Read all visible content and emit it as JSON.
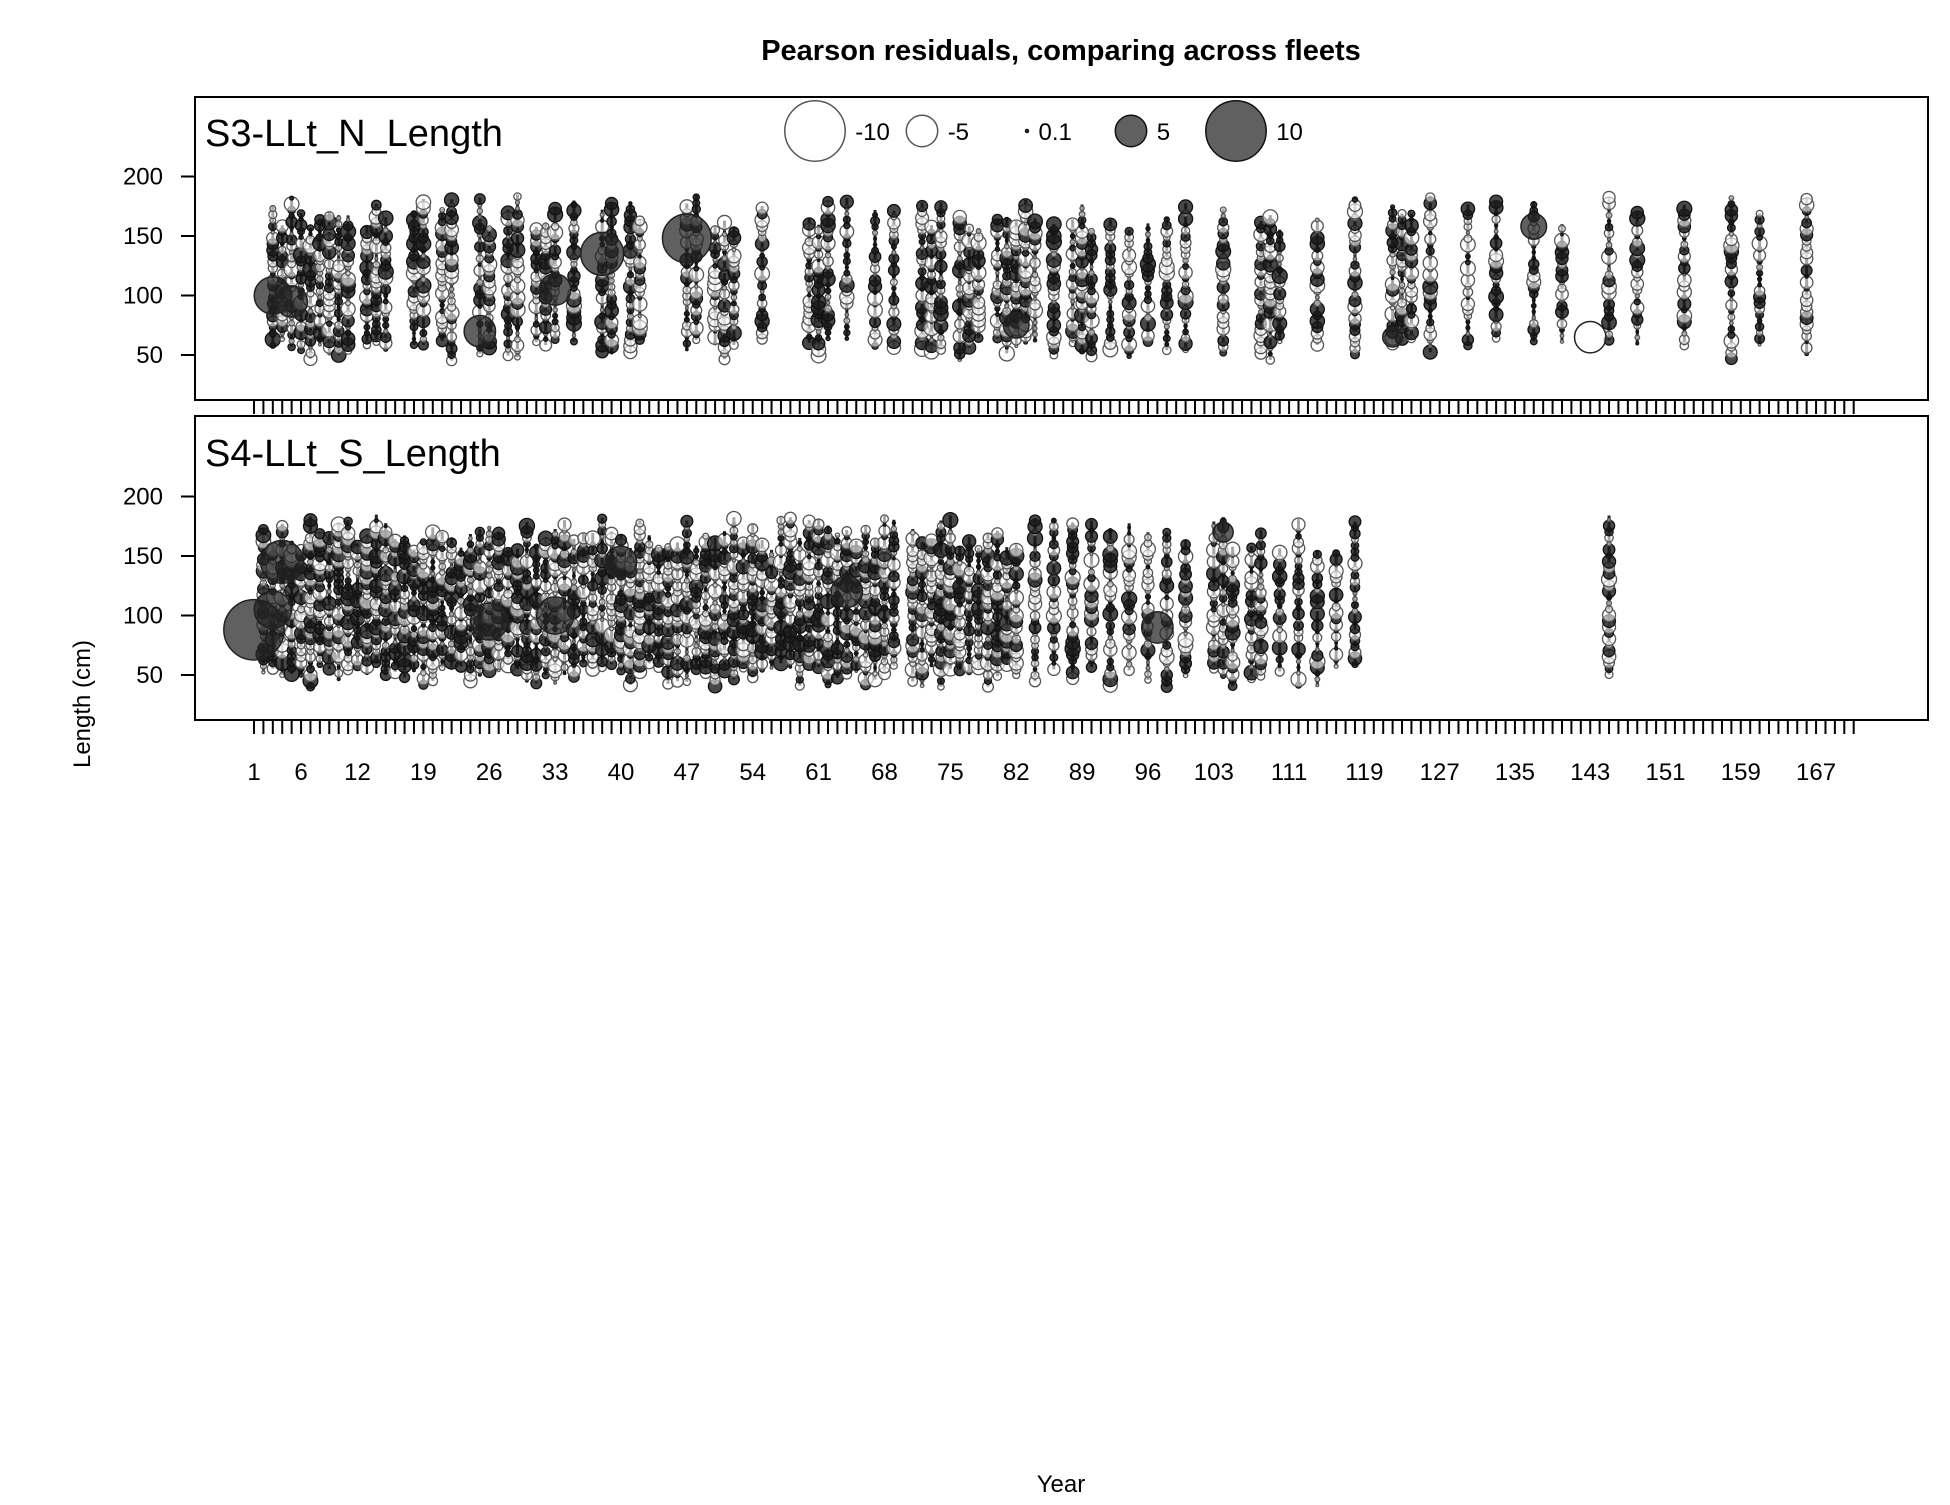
{
  "chart_data": {
    "type": "scatter",
    "subtype": "bubble",
    "title": "Pearson residuals,  comparing across fleets",
    "xlabel": "Year",
    "ylabel": "Length (cm)",
    "x_range": [
      1,
      171
    ],
    "x_tick_labels": [
      "1",
      "6",
      "12",
      "19",
      "26",
      "33",
      "40",
      "47",
      "54",
      "61",
      "68",
      "75",
      "82",
      "89",
      "96",
      "103",
      "111",
      "119",
      "127",
      "135",
      "143",
      "151",
      "159",
      "167"
    ],
    "y_ticks": [
      50,
      100,
      150,
      200
    ],
    "ylim": [
      20,
      200
    ],
    "legend": {
      "position": "top-center",
      "entries": [
        {
          "label": "-10",
          "value": -10,
          "fill": "#ffffff"
        },
        {
          "label": "-5",
          "value": -5,
          "fill": "#ffffff"
        },
        {
          "label": "0.1",
          "value": 0.1,
          "fill": "#222222"
        },
        {
          "label": "5",
          "value": 5,
          "fill": "#444444"
        },
        {
          "label": "10",
          "value": 10,
          "fill": "#444444"
        }
      ]
    },
    "panels": [
      {
        "name": "S3-LLt_N_Length",
        "sampled_years": [
          3,
          4,
          5,
          6,
          7,
          8,
          9,
          10,
          11,
          13,
          14,
          15,
          18,
          19,
          21,
          22,
          25,
          26,
          28,
          29,
          31,
          32,
          33,
          35,
          38,
          39,
          41,
          42,
          47,
          48,
          50,
          51,
          52,
          55,
          60,
          61,
          62,
          64,
          67,
          69,
          72,
          73,
          74,
          76,
          77,
          78,
          80,
          81,
          82,
          83,
          84,
          86,
          88,
          89,
          90,
          92,
          94,
          96,
          98,
          100,
          104,
          108,
          109,
          110,
          114,
          118,
          122,
          123,
          124,
          126,
          130,
          133,
          137,
          140,
          145,
          148,
          153,
          158,
          161,
          166
        ],
        "length_range": [
          45,
          185
        ],
        "notable_residuals": [
          {
            "year": 47,
            "length": 148,
            "residual": 8
          },
          {
            "year": 38,
            "length": 135,
            "residual": 7
          },
          {
            "year": 3,
            "length": 100,
            "residual": 6
          },
          {
            "year": 5,
            "length": 95,
            "residual": 5
          },
          {
            "year": 25,
            "length": 70,
            "residual": 5
          },
          {
            "year": 33,
            "length": 105,
            "residual": 5
          },
          {
            "year": 143,
            "length": 65,
            "residual": -5
          },
          {
            "year": 137,
            "length": 158,
            "residual": 4
          },
          {
            "year": 82,
            "length": 75,
            "residual": 4
          },
          {
            "year": 122,
            "length": 65,
            "residual": 3
          }
        ]
      },
      {
        "name": "S4-LLt_S_Length",
        "sampled_years": [
          2,
          3,
          4,
          5,
          6,
          7,
          8,
          9,
          10,
          11,
          12,
          13,
          14,
          15,
          16,
          17,
          18,
          19,
          20,
          21,
          22,
          23,
          24,
          25,
          26,
          27,
          28,
          29,
          30,
          31,
          32,
          33,
          34,
          35,
          36,
          37,
          38,
          39,
          40,
          41,
          42,
          43,
          44,
          45,
          46,
          47,
          48,
          49,
          50,
          51,
          52,
          53,
          54,
          55,
          56,
          57,
          58,
          59,
          60,
          61,
          62,
          63,
          64,
          65,
          66,
          67,
          68,
          69,
          71,
          72,
          73,
          74,
          75,
          76,
          77,
          78,
          79,
          80,
          81,
          82,
          84,
          86,
          88,
          90,
          92,
          94,
          96,
          98,
          100,
          103,
          104,
          105,
          107,
          108,
          110,
          112,
          114,
          116,
          118,
          145
        ],
        "length_range": [
          40,
          185
        ],
        "notable_residuals": [
          {
            "year": 1,
            "length": 88,
            "residual": 10
          },
          {
            "year": 4,
            "length": 145,
            "residual": 7
          },
          {
            "year": 3,
            "length": 105,
            "residual": 6
          },
          {
            "year": 26,
            "length": 95,
            "residual": 6
          },
          {
            "year": 33,
            "length": 100,
            "residual": 6
          },
          {
            "year": 40,
            "length": 145,
            "residual": 5
          },
          {
            "year": 97,
            "length": 90,
            "residual": 5
          },
          {
            "year": 64,
            "length": 120,
            "residual": 5
          },
          {
            "year": 104,
            "length": 170,
            "residual": 3
          }
        ]
      }
    ]
  }
}
